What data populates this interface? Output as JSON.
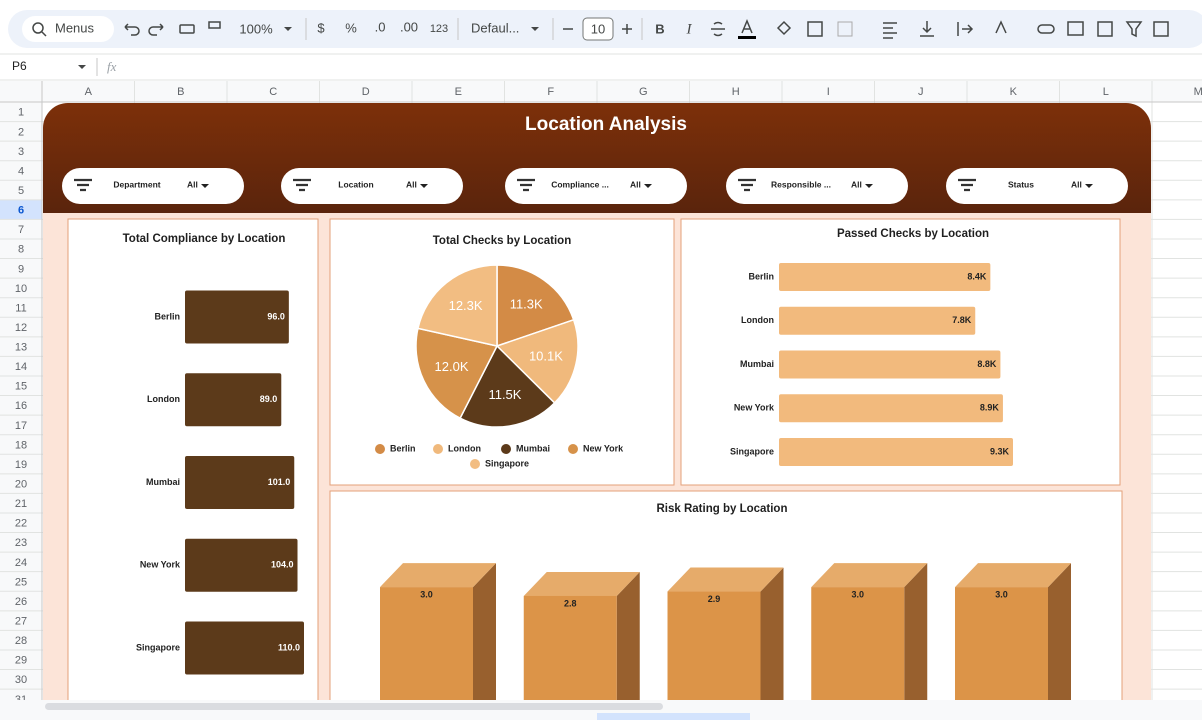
{
  "toolbar": {
    "search": "Menus",
    "zoom": "100%",
    "currency": "$",
    "percent": "%",
    "decrease_decimals": ".0",
    "increase_decimals": ".00",
    "number_format": "123",
    "font": "Defaul...",
    "font_size": "10",
    "bold": "B",
    "italic": "I"
  },
  "formula_bar": {
    "cell": "P6",
    "fx": "fx"
  },
  "sheet": {
    "columns": [
      "A",
      "B",
      "C",
      "D",
      "E",
      "F",
      "G",
      "H",
      "I",
      "J",
      "K",
      "L",
      "M"
    ],
    "rows": [
      1,
      2,
      3,
      4,
      5,
      6,
      7,
      8,
      9,
      10,
      11,
      12,
      13,
      14,
      15,
      16,
      17,
      18,
      19,
      20,
      21,
      22,
      23,
      24,
      25,
      26,
      27,
      28,
      29,
      30,
      31
    ],
    "selected_row": 6
  },
  "dashboard": {
    "title": "Location Analysis",
    "filters": [
      {
        "label": "Department",
        "value": "All"
      },
      {
        "label": "Location",
        "value": "All"
      },
      {
        "label": "Compliance ...",
        "value": "All"
      },
      {
        "label": "Responsible ...",
        "value": "All"
      },
      {
        "label": "Status",
        "value": "All"
      }
    ]
  },
  "chart_data": [
    {
      "type": "hbar",
      "title": "Total Compliance by Location",
      "categories": [
        "Berlin",
        "London",
        "Mumbai",
        "New York",
        "Singapore"
      ],
      "values": [
        96,
        89,
        101,
        104,
        110
      ],
      "value_labels": [
        "96.0",
        "89.0",
        "101.0",
        "104.0",
        "110.0"
      ],
      "color": "#5c3a1a"
    },
    {
      "type": "pie",
      "title": "Total Checks by Location",
      "categories": [
        "Berlin",
        "London",
        "Mumbai",
        "New York",
        "Singapore"
      ],
      "values": [
        11300,
        10100,
        11500,
        12000,
        12300
      ],
      "value_labels": [
        "11.3K",
        "10.1K",
        "11.5K",
        "12.0K",
        "12.3K"
      ],
      "colors": [
        "#d38b46",
        "#f0b97c",
        "#5c3a1a",
        "#d6924a",
        "#f2bd82"
      ]
    },
    {
      "type": "hbar",
      "title": "Passed Checks  by Location",
      "categories": [
        "Berlin",
        "London",
        "Mumbai",
        "New York",
        "Singapore"
      ],
      "values": [
        8400,
        7800,
        8800,
        8900,
        9300
      ],
      "value_labels": [
        "8.4K",
        "7.8K",
        "8.8K",
        "8.9K",
        "9.3K"
      ],
      "color": "#f2ba7d"
    },
    {
      "type": "bar3d",
      "title": "Risk Rating  by Location",
      "values": [
        3.0,
        2.8,
        2.9,
        3.0,
        3.0
      ],
      "value_labels": [
        "3.0",
        "2.8",
        "2.9",
        "3.0",
        "3.0"
      ],
      "colors": {
        "front": "#dc9448",
        "top": "#e6ab6a",
        "side": "#98602e"
      }
    }
  ]
}
